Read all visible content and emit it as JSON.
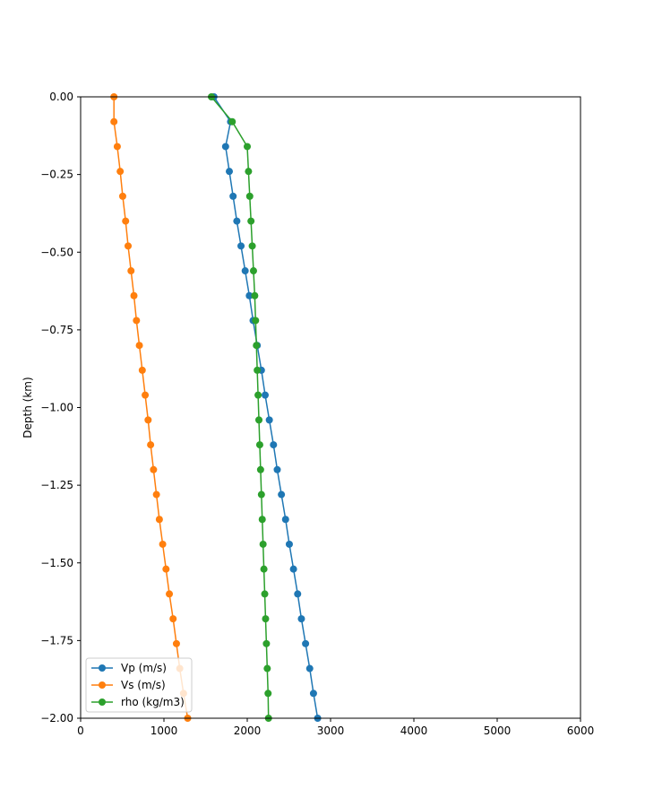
{
  "chart_data": {
    "type": "line",
    "title": "",
    "xlabel": "",
    "ylabel": "Depth (km)",
    "xlim": [
      0,
      6000
    ],
    "ylim": [
      -2.0,
      0.0
    ],
    "xticks": [
      0,
      1000,
      2000,
      3000,
      4000,
      5000,
      6000
    ],
    "xtick_labels": [
      "0",
      "1000",
      "2000",
      "3000",
      "4000",
      "5000",
      "6000"
    ],
    "yticks": [
      0.0,
      -0.25,
      -0.5,
      -0.75,
      -1.0,
      -1.25,
      -1.5,
      -1.75,
      -2.0
    ],
    "ytick_labels": [
      "0.00",
      "−0.25",
      "−0.50",
      "−0.75",
      "−1.00",
      "−1.25",
      "−1.50",
      "−1.75",
      "−2.00"
    ],
    "grid": false,
    "legend_position": "lower-left",
    "y": [
      0.0,
      -0.08,
      -0.16,
      -0.24,
      -0.32,
      -0.4,
      -0.48,
      -0.56,
      -0.64,
      -0.72,
      -0.8,
      -0.88,
      -0.96,
      -1.04,
      -1.12,
      -1.2,
      -1.28,
      -1.36,
      -1.44,
      -1.52,
      -1.6,
      -1.68,
      -1.76,
      -1.84,
      -1.92,
      -2.0
    ],
    "series": [
      {
        "name": "Vp (m/s)",
        "color": "#1f77b4",
        "values": [
          1600,
          1800,
          1740,
          1785,
          1830,
          1875,
          1925,
          1975,
          2025,
          2070,
          2120,
          2170,
          2215,
          2265,
          2315,
          2360,
          2410,
          2460,
          2505,
          2555,
          2605,
          2650,
          2700,
          2750,
          2795,
          2845
        ]
      },
      {
        "name": "Vs (m/s)",
        "color": "#ff7f0e",
        "values": [
          400,
          400,
          440,
          475,
          505,
          540,
          570,
          605,
          640,
          670,
          705,
          740,
          775,
          810,
          840,
          875,
          910,
          945,
          985,
          1025,
          1065,
          1110,
          1150,
          1190,
          1235,
          1285
        ]
      },
      {
        "name": "rho (kg/m3)",
        "color": "#2ca02c",
        "values": [
          1570,
          1820,
          2000,
          2015,
          2030,
          2045,
          2060,
          2075,
          2090,
          2100,
          2110,
          2120,
          2130,
          2140,
          2150,
          2160,
          2170,
          2180,
          2190,
          2200,
          2210,
          2220,
          2230,
          2240,
          2250,
          2255
        ]
      }
    ]
  }
}
